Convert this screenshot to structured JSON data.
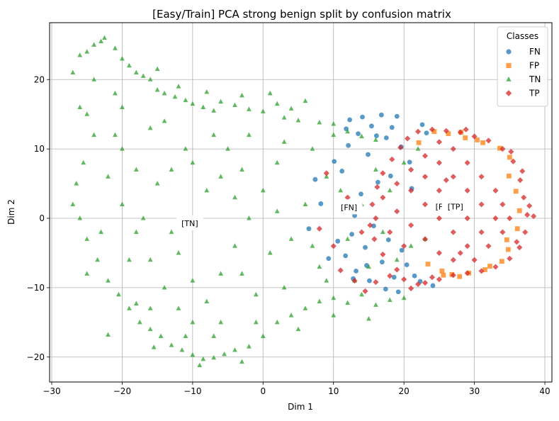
{
  "chart_data": {
    "type": "scatter",
    "title": "[Easy/Train] PCA strong benign split by confusion matrix",
    "xlabel": "Dim 1",
    "ylabel": "Dim 2",
    "xlim": [
      -30.3,
      41.0
    ],
    "ylim": [
      -23.6,
      28.2
    ],
    "xticks": [
      -30,
      -20,
      -10,
      0,
      10,
      20,
      30,
      40
    ],
    "xtick_labels": [
      "−30",
      "−20",
      "−10",
      "0",
      "10",
      "20",
      "30",
      "40"
    ],
    "yticks": [
      -20,
      -10,
      0,
      10,
      20
    ],
    "ytick_labels": [
      "−20",
      "−10",
      "0",
      "10",
      "20"
    ],
    "grid": true,
    "legend": {
      "title": "Classes",
      "position": "top-right",
      "entries": [
        "FN",
        "FP",
        "TN",
        "TP"
      ]
    },
    "series": [
      {
        "name": "FN",
        "marker": "circle",
        "color": "#1f77b4",
        "points": [
          [
            16.8,
            14.9
          ],
          [
            14.1,
            14.6
          ],
          [
            19.0,
            14.7
          ],
          [
            12.3,
            14.2
          ],
          [
            15.4,
            13.3
          ],
          [
            18.3,
            13.1
          ],
          [
            11.8,
            12.9
          ],
          [
            13.5,
            12.2
          ],
          [
            22.6,
            13.5
          ],
          [
            17.5,
            11.6
          ],
          [
            19.6,
            10.3
          ],
          [
            12.1,
            10.5
          ],
          [
            14.9,
            9.2
          ],
          [
            20.8,
            8.1
          ],
          [
            21.5,
            -8.3
          ],
          [
            19.2,
            -10.6
          ],
          [
            17.4,
            -10.2
          ],
          [
            15.1,
            -9.0
          ],
          [
            18.6,
            -8.5
          ],
          [
            13.2,
            -7.6
          ],
          [
            16.9,
            -6.3
          ],
          [
            22.3,
            -9.1
          ],
          [
            11.7,
            -5.4
          ],
          [
            14.5,
            -4.2
          ],
          [
            17.8,
            -3.1
          ],
          [
            12.6,
            -2.3
          ],
          [
            15.7,
            -1.1
          ],
          [
            19.7,
            -4.6
          ],
          [
            13.9,
            3.5
          ],
          [
            16.3,
            5.2
          ],
          [
            11.2,
            6.8
          ],
          [
            18.1,
            6.1
          ],
          [
            21.1,
            4.3
          ],
          [
            14.7,
            -6.8
          ],
          [
            20.4,
            -6.7
          ],
          [
            10.6,
            -3.3
          ],
          [
            8.2,
            2.1
          ],
          [
            6.5,
            -1.5
          ],
          [
            9.3,
            -5.8
          ],
          [
            7.4,
            5.6
          ],
          [
            10.1,
            8.2
          ],
          [
            12.8,
            -8.7
          ],
          [
            23.2,
            12.3
          ],
          [
            24.1,
            -9.7
          ],
          [
            16.1,
            11.9
          ],
          [
            13.0,
            0.4
          ]
        ]
      },
      {
        "name": "FP",
        "marker": "square",
        "color": "#ff7f0e",
        "points": [
          [
            26.3,
            12.2
          ],
          [
            28.7,
            11.6
          ],
          [
            31.2,
            10.9
          ],
          [
            33.6,
            10.1
          ],
          [
            35.0,
            8.8
          ],
          [
            34.8,
            -4.5
          ],
          [
            33.9,
            -6.2
          ],
          [
            31.5,
            -7.4
          ],
          [
            29.2,
            -7.9
          ],
          [
            26.8,
            -8.1
          ],
          [
            25.4,
            -7.6
          ],
          [
            24.3,
            12.5
          ],
          [
            32.2,
            -6.9
          ],
          [
            34.6,
            -3.1
          ],
          [
            35.9,
            3.9
          ],
          [
            34.9,
            6.1
          ],
          [
            27.9,
            -8.4
          ],
          [
            23.4,
            -6.6
          ],
          [
            22.1,
            10.9
          ],
          [
            30.4,
            11.3
          ],
          [
            36.4,
            1.1
          ],
          [
            36.1,
            -1.5
          ],
          [
            28.1,
            12.4
          ],
          [
            25.6,
            -8.2
          ]
        ]
      },
      {
        "name": "TN",
        "marker": "triangle",
        "color": "#2ca02c",
        "points": [
          [
            -27,
            21
          ],
          [
            -26,
            23.5
          ],
          [
            -25,
            24
          ],
          [
            -24,
            25
          ],
          [
            -23,
            25.5
          ],
          [
            -22.5,
            26
          ],
          [
            -21,
            24.5
          ],
          [
            -20,
            23
          ],
          [
            -19,
            22
          ],
          [
            -18,
            21
          ],
          [
            -17,
            20.5
          ],
          [
            -16,
            20
          ],
          [
            -15,
            18.5
          ],
          [
            -14,
            18
          ],
          [
            -12.5,
            17.5
          ],
          [
            -11,
            17
          ],
          [
            -10,
            16.5
          ],
          [
            -8.5,
            16
          ],
          [
            -7,
            15.5
          ],
          [
            -6,
            16.8
          ],
          [
            -4,
            16.3
          ],
          [
            -2,
            15.7
          ],
          [
            0,
            15.4
          ],
          [
            1,
            18
          ],
          [
            2,
            16.5
          ],
          [
            3,
            14.5
          ],
          [
            5,
            14.1
          ],
          [
            6,
            16.9
          ],
          [
            8,
            13.8
          ],
          [
            10,
            13.6
          ],
          [
            12,
            12.5
          ],
          [
            14,
            11.8
          ],
          [
            16,
            11.3
          ],
          [
            -8,
            18.2
          ],
          [
            -15,
            21.5
          ],
          [
            -12,
            19
          ],
          [
            -3,
            17.7
          ],
          [
            4,
            15.8
          ],
          [
            -25,
            15
          ],
          [
            -25.5,
            8
          ],
          [
            -26.5,
            5
          ],
          [
            -26,
            0
          ],
          [
            -25,
            -3
          ],
          [
            -23.5,
            -6
          ],
          [
            -22,
            -9
          ],
          [
            -20.5,
            -11
          ],
          [
            -19,
            -13
          ],
          [
            -17.5,
            -15
          ],
          [
            -16,
            -16
          ],
          [
            -14.5,
            -17
          ],
          [
            -13,
            -18.3
          ],
          [
            -11.5,
            -19
          ],
          [
            -10,
            -19.7
          ],
          [
            -8.5,
            -20.3
          ],
          [
            -7,
            -20.1
          ],
          [
            -5.5,
            -19.6
          ],
          [
            -4,
            -19
          ],
          [
            -3,
            -20.7
          ],
          [
            -2,
            -18.5
          ],
          [
            0,
            -17
          ],
          [
            2,
            -15
          ],
          [
            4,
            -14
          ],
          [
            6,
            -13
          ],
          [
            8,
            -12
          ],
          [
            10,
            -11.5
          ],
          [
            12,
            -12.2
          ],
          [
            14,
            -11
          ],
          [
            16,
            -12.5
          ],
          [
            18,
            -11.8
          ],
          [
            20,
            -11.5
          ],
          [
            -22,
            -16.8
          ],
          [
            -15.5,
            -18.6
          ],
          [
            -9,
            -21.2
          ],
          [
            -18,
            -12.3
          ],
          [
            -24,
            12
          ],
          [
            -22,
            6
          ],
          [
            -20,
            2
          ],
          [
            -18,
            -2
          ],
          [
            -16,
            -6
          ],
          [
            -14,
            -10
          ],
          [
            -12,
            -13
          ],
          [
            -10,
            -15
          ],
          [
            -8,
            -12
          ],
          [
            -6,
            -8
          ],
          [
            -4,
            -4
          ],
          [
            -2,
            0
          ],
          [
            0,
            4
          ],
          [
            2,
            8
          ],
          [
            -5,
            10
          ],
          [
            -10,
            8
          ],
          [
            -15,
            5
          ],
          [
            -20,
            10
          ],
          [
            -14,
            14
          ],
          [
            -8,
            4
          ],
          [
            -3,
            -8
          ],
          [
            3,
            -10
          ],
          [
            6,
            2
          ],
          [
            9,
            6
          ],
          [
            12,
            -3
          ],
          [
            15,
            -7
          ],
          [
            18,
            4
          ],
          [
            20,
            8
          ],
          [
            22,
            10
          ],
          [
            -21,
            18
          ],
          [
            -12,
            -5
          ],
          [
            -6,
            -15
          ],
          [
            8,
            -7
          ],
          [
            4,
            -3
          ],
          [
            14,
            2
          ],
          [
            17,
            -2
          ],
          [
            19,
            -6
          ],
          [
            21,
            -4
          ],
          [
            -24,
            20
          ],
          [
            -20,
            16
          ],
          [
            -16,
            13
          ],
          [
            -11,
            10
          ],
          [
            -7,
            12
          ],
          [
            -2,
            12
          ],
          [
            3,
            11
          ],
          [
            7,
            10
          ],
          [
            -23,
            -2
          ],
          [
            -19,
            -6
          ],
          [
            -16,
            -13
          ],
          [
            -11,
            -17
          ],
          [
            -7,
            -17
          ],
          [
            -1,
            -15
          ],
          [
            5,
            -16
          ],
          [
            10,
            -14
          ],
          [
            15,
            -14.5
          ],
          [
            -17,
            0
          ],
          [
            -13,
            -2
          ],
          [
            -9,
            0
          ],
          [
            -4,
            3
          ],
          [
            1,
            -5
          ],
          [
            7,
            -4
          ],
          [
            11,
            4
          ],
          [
            16,
            7
          ],
          [
            -26,
            16
          ],
          [
            -21,
            12
          ],
          [
            -25,
            -8
          ],
          [
            -13,
            7
          ],
          [
            -6,
            6
          ],
          [
            2,
            1
          ],
          [
            13,
            -9
          ],
          [
            23,
            -3
          ],
          [
            -27,
            2
          ],
          [
            -10,
            -9
          ],
          [
            -1,
            -11
          ],
          [
            9,
            -9
          ],
          [
            -18,
            7
          ],
          [
            -3,
            7
          ],
          [
            10,
            12
          ]
        ]
      },
      {
        "name": "TP",
        "marker": "diamond",
        "color": "#d62728",
        "points": [
          [
            22,
            12.5
          ],
          [
            24,
            12.8
          ],
          [
            26,
            12.6
          ],
          [
            28,
            12.4
          ],
          [
            30,
            11.8
          ],
          [
            32,
            11.2
          ],
          [
            34,
            10.0
          ],
          [
            35.5,
            8.2
          ],
          [
            36.5,
            5.5
          ],
          [
            37,
            3.0
          ],
          [
            37.5,
            0.5
          ],
          [
            37.2,
            -2.0
          ],
          [
            36.4,
            -4.2
          ],
          [
            35,
            -5.8
          ],
          [
            33,
            -7.0
          ],
          [
            31,
            -7.6
          ],
          [
            29,
            -7.9
          ],
          [
            27,
            -8.2
          ],
          [
            25,
            -8.8
          ],
          [
            23,
            -9.3
          ],
          [
            21,
            -10.1
          ],
          [
            19,
            -7.4
          ],
          [
            17,
            -5.2
          ],
          [
            15.8,
            -3.0
          ],
          [
            15.2,
            -1.0
          ],
          [
            15.5,
            2.0
          ],
          [
            16.2,
            4.5
          ],
          [
            17,
            6.5
          ],
          [
            18.3,
            8.5
          ],
          [
            19.5,
            10.2
          ],
          [
            20.5,
            11.5
          ],
          [
            18,
            -8.3
          ],
          [
            20,
            -8.8
          ],
          [
            22,
            -9.5
          ],
          [
            24,
            -8.5
          ],
          [
            30,
            -6
          ],
          [
            32,
            -4
          ],
          [
            34,
            -2
          ],
          [
            35,
            0
          ],
          [
            34,
            2
          ],
          [
            33,
            4
          ],
          [
            31,
            6
          ],
          [
            29,
            8
          ],
          [
            27,
            10
          ],
          [
            25,
            11
          ],
          [
            23,
            9
          ],
          [
            21,
            7
          ],
          [
            19,
            5
          ],
          [
            17,
            3
          ],
          [
            19,
            1
          ],
          [
            21,
            -1
          ],
          [
            23,
            -3
          ],
          [
            25,
            -5
          ],
          [
            27,
            -6
          ],
          [
            29,
            -4
          ],
          [
            31,
            -2
          ],
          [
            33,
            0
          ],
          [
            31,
            2
          ],
          [
            29,
            4
          ],
          [
            27,
            6
          ],
          [
            25,
            8
          ],
          [
            23,
            6
          ],
          [
            21,
            4
          ],
          [
            23,
            2
          ],
          [
            25,
            0
          ],
          [
            27,
            -2
          ],
          [
            29,
            0
          ],
          [
            27,
            2
          ],
          [
            25,
            4
          ],
          [
            26,
            5.5
          ],
          [
            28,
            -5
          ],
          [
            20,
            -4
          ],
          [
            18,
            -2
          ],
          [
            16,
            0
          ],
          [
            14,
            -2
          ],
          [
            13,
            1
          ],
          [
            12,
            3
          ],
          [
            9,
            6.5
          ],
          [
            8,
            -1.5
          ],
          [
            10,
            -4
          ],
          [
            11,
            -7.5
          ],
          [
            13,
            -9
          ],
          [
            14.5,
            -10.5
          ],
          [
            16,
            -9.2
          ],
          [
            36,
            -3.4
          ],
          [
            37.8,
            1.8
          ],
          [
            36.8,
            6.8
          ],
          [
            38.4,
            0.3
          ],
          [
            35.2,
            9.6
          ],
          [
            28.8,
            12.8
          ]
        ]
      }
    ],
    "annotations": [
      {
        "text": "[TN]",
        "x": -10.4,
        "y": -0.7
      },
      {
        "text": "[FN]",
        "x": 12.2,
        "y": 1.6
      },
      {
        "text": "[F",
        "x": 25.0,
        "y": 1.7
      },
      {
        "text": "[TP]",
        "x": 27.3,
        "y": 1.7
      }
    ]
  }
}
